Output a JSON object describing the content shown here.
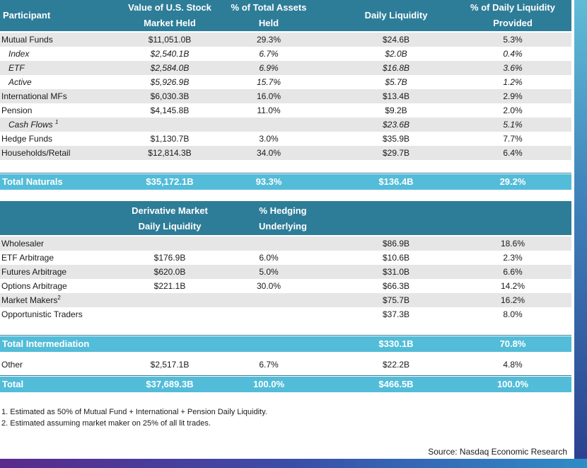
{
  "table1": {
    "headers": {
      "participant": "Participant",
      "value_line1": "Value of U.S. Stock",
      "value_line2": "Market Held",
      "pct_line1": "% of Total Assets",
      "pct_line2": "Held",
      "daily": "Daily Liquidity",
      "pctdaily_line1": "% of Daily Liquidity",
      "pctdaily_line2": "Provided"
    },
    "rows": [
      {
        "name": "Mutual Funds",
        "value": "$11,051.0B",
        "pct": "29.3%",
        "daily": "$24.6B",
        "pctdaily": "5.3%"
      },
      {
        "name": "Index",
        "value": "$2,540.1B",
        "pct": "6.7%",
        "daily": "$2.0B",
        "pctdaily": "0.4%"
      },
      {
        "name": "ETF",
        "value": "$2,584.0B",
        "pct": "6.9%",
        "daily": "$16.8B",
        "pctdaily": "3.6%"
      },
      {
        "name": "Active",
        "value": "$5,926.9B",
        "pct": "15.7%",
        "daily": "$5.7B",
        "pctdaily": "1.2%"
      },
      {
        "name": "International MFs",
        "value": "$6,030.3B",
        "pct": "16.0%",
        "daily": "$13.4B",
        "pctdaily": "2.9%"
      },
      {
        "name": "Pension",
        "value": "$4,145.8B",
        "pct": "11.0%",
        "daily": "$9.2B",
        "pctdaily": "2.0%"
      },
      {
        "name": "Cash Flows",
        "sup": "1",
        "value": "",
        "pct": "",
        "daily": "$23.6B",
        "pctdaily": "5.1%"
      },
      {
        "name": "Hedge Funds",
        "value": "$1,130.7B",
        "pct": "3.0%",
        "daily": "$35.9B",
        "pctdaily": "7.7%"
      },
      {
        "name": "Households/Retail",
        "value": "$12,814.3B",
        "pct": "34.0%",
        "daily": "$29.7B",
        "pctdaily": "6.4%"
      }
    ],
    "total": {
      "name": "Total Naturals",
      "value": "$35,172.1B",
      "pct": "93.3%",
      "daily": "$136.4B",
      "pctdaily": "29.2%"
    }
  },
  "table2": {
    "headers": {
      "deriv_line1": "Derivative Market",
      "deriv_line2": "Daily Liquidity",
      "hedge_line1": "% Hedging",
      "hedge_line2": "Underlying"
    },
    "rows": [
      {
        "name": "Wholesaler",
        "deriv": "",
        "hedge": "",
        "daily": "$86.9B",
        "pctdaily": "18.6%"
      },
      {
        "name": "ETF Arbitrage",
        "deriv": "$176.9B",
        "hedge": "6.0%",
        "daily": "$10.6B",
        "pctdaily": "2.3%"
      },
      {
        "name": "Futures Arbitrage",
        "deriv": "$620.0B",
        "hedge": "5.0%",
        "daily": "$31.0B",
        "pctdaily": "6.6%"
      },
      {
        "name": "Options Arbitrage",
        "deriv": "$221.1B",
        "hedge": "30.0%",
        "daily": "$66.3B",
        "pctdaily": "14.2%"
      },
      {
        "name": "Market Makers",
        "sup": "2",
        "deriv": "",
        "hedge": "",
        "daily": "$75.7B",
        "pctdaily": "16.2%"
      },
      {
        "name": "Opportunistic Traders",
        "deriv": "",
        "hedge": "",
        "daily": "$37.3B",
        "pctdaily": "8.0%"
      }
    ],
    "total_intermediation": {
      "name": "Total Intermediation",
      "daily": "$330.1B",
      "pctdaily": "70.8%"
    },
    "other": {
      "name": "Other",
      "value": "$2,517.1B",
      "pct": "6.7%",
      "daily": "$22.2B",
      "pctdaily": "4.8%"
    },
    "grand_total": {
      "name": "Total",
      "value": "$37,689.3B",
      "pct": "100.0%",
      "daily": "$466.5B",
      "pctdaily": "100.0%"
    }
  },
  "notes": [
    "1. Estimated as 50% of Mutual Fund + International + Pension Daily Liquidity.",
    "2. Estimated assuming market maker on 25% of all lit trades."
  ],
  "source": "Source: Nasdaq Economic Research",
  "colors": {
    "header": "#2e7d98",
    "total_bar": "#53bcd8",
    "stripe": "#e6e6e6"
  }
}
